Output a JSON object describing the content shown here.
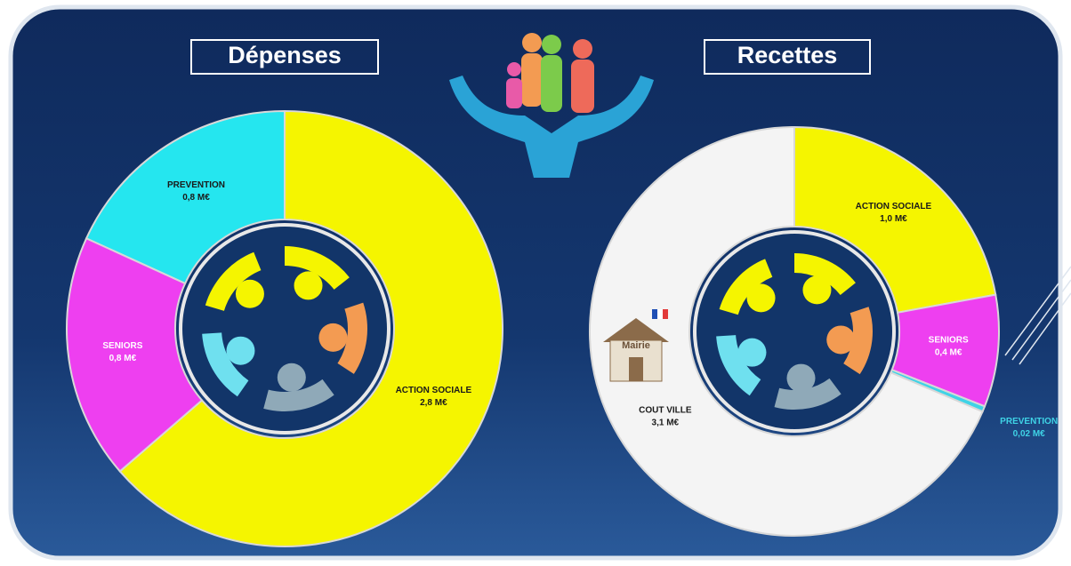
{
  "chart_data": [
    {
      "type": "pie",
      "title": "Dépenses",
      "categories": [
        "ACTION SOCIALE",
        "SENIORS",
        "PREVENTION"
      ],
      "values": [
        2.8,
        0.8,
        0.8
      ],
      "value_labels": [
        "2,8 M€",
        "0,8 M€",
        "0,8 M€"
      ],
      "colors": [
        "#f5f500",
        "#ee3ff0",
        "#25e6ef"
      ]
    },
    {
      "type": "pie",
      "title": "Recettes",
      "categories": [
        "ACTION SOCIALE",
        "SENIORS",
        "PREVENTION",
        "COUT VILLE"
      ],
      "values": [
        1.0,
        0.4,
        0.02,
        3.1
      ],
      "value_labels": [
        "1,0 M€",
        "0,4 M€",
        "0,02 M€",
        "3,1 M€"
      ],
      "colors": [
        "#f5f500",
        "#ee3ff0",
        "#3fd3e6",
        "#f4f4f4"
      ],
      "annotations": [
        "Mairie"
      ]
    }
  ]
}
